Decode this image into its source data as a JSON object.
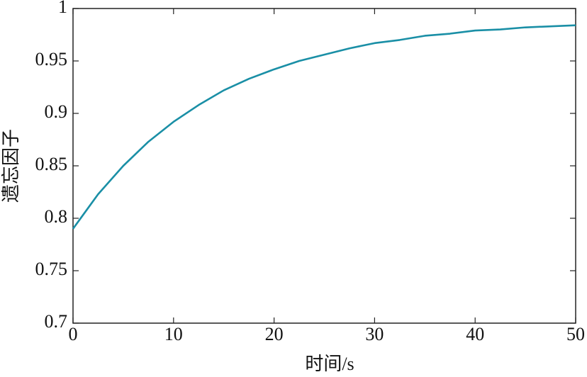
{
  "chart_data": {
    "type": "line",
    "x_label": "时间/s",
    "y_label": "遗忘因子",
    "x": [
      0,
      2.5,
      5,
      7.5,
      10,
      12.5,
      15,
      17.5,
      20,
      22.5,
      25,
      27.5,
      30,
      32.5,
      35,
      37.5,
      40,
      42.5,
      45,
      47.5,
      50
    ],
    "values": [
      0.79,
      0.823,
      0.85,
      0.873,
      0.892,
      0.908,
      0.922,
      0.933,
      0.942,
      0.95,
      0.956,
      0.962,
      0.967,
      0.97,
      0.974,
      0.976,
      0.979,
      0.98,
      0.982,
      0.983,
      0.984
    ],
    "color": "#1a8fa6",
    "xlim": [
      0,
      50
    ],
    "xticks": [
      0,
      10,
      20,
      30,
      40,
      50
    ],
    "ylim": [
      0.7,
      1
    ],
    "yticks": [
      0.7,
      0.75,
      0.8,
      0.85,
      0.9,
      0.95,
      1
    ],
    "grid": false
  }
}
